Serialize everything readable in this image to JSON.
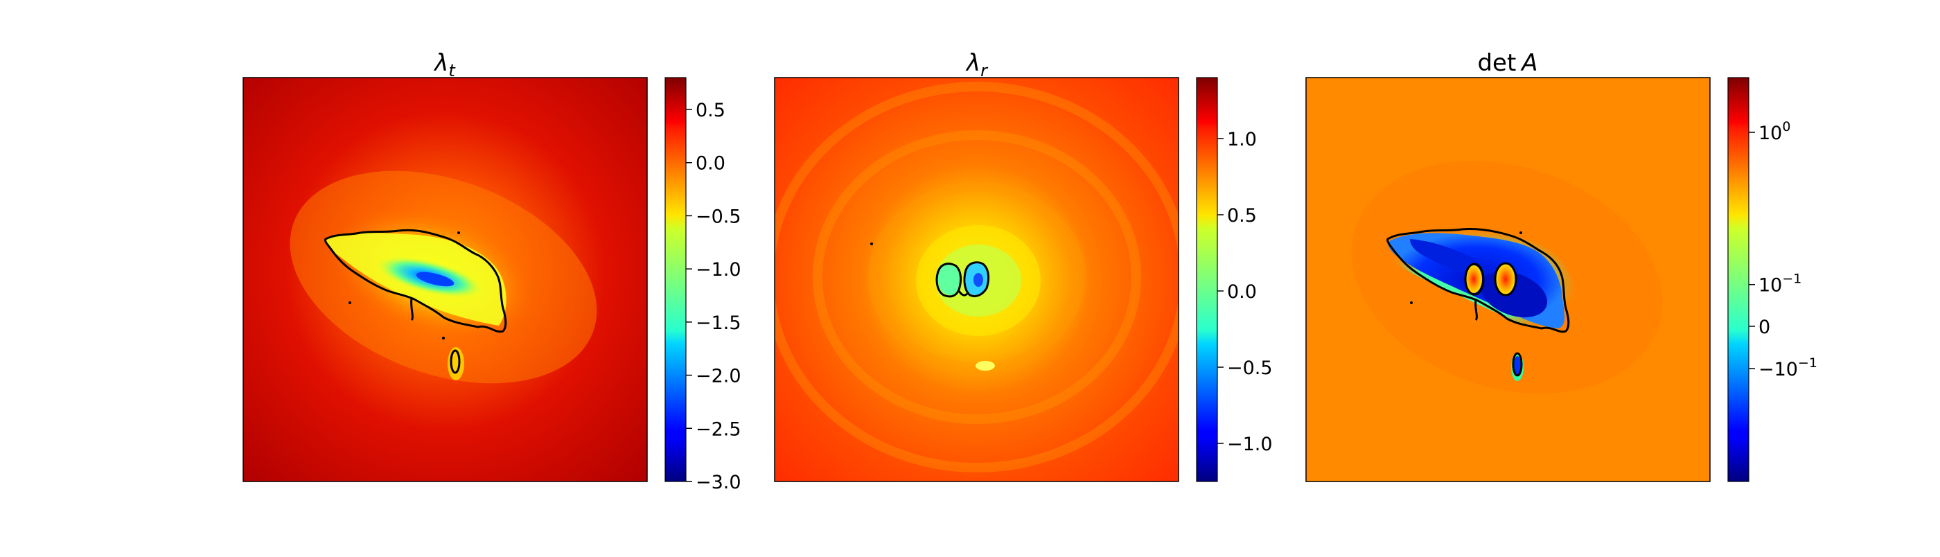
{
  "chart_data": [
    {
      "type": "heatmap",
      "title": "λ_t",
      "title_base": "λ",
      "title_sub": "t",
      "colormap": "jet",
      "clim": [
        -3.0,
        0.8
      ],
      "colorbar_ticks": [
        {
          "value": 0.5,
          "label": "0.5"
        },
        {
          "value": 0.0,
          "label": "0.0"
        },
        {
          "value": -0.5,
          "label": "−0.5"
        },
        {
          "value": -1.0,
          "label": "−1.0"
        },
        {
          "value": -1.5,
          "label": "−1.5"
        },
        {
          "value": -2.0,
          "label": "−2.0"
        },
        {
          "value": -2.5,
          "label": "−2.5"
        },
        {
          "value": -3.0,
          "label": "−3.0"
        }
      ]
    },
    {
      "type": "heatmap",
      "title": "λ_r",
      "title_base": "λ",
      "title_sub": "r",
      "colormap": "jet",
      "clim": [
        -1.25,
        1.4
      ],
      "colorbar_ticks": [
        {
          "value": 1.0,
          "label": "1.0"
        },
        {
          "value": 0.5,
          "label": "0.5"
        },
        {
          "value": 0.0,
          "label": "0.0"
        },
        {
          "value": -0.5,
          "label": "−0.5"
        },
        {
          "value": -1.0,
          "label": "−1.0"
        }
      ]
    },
    {
      "type": "heatmap",
      "title": "det A",
      "title_base": "det",
      "title_sub": "A",
      "colormap": "jet",
      "scale": "symlog",
      "colorbar_ticks": [
        {
          "label": "10^0",
          "base": "10",
          "exp": "0"
        },
        {
          "label": "10^−1",
          "base": "10",
          "exp": "−1"
        },
        {
          "label": "0",
          "base": "0",
          "exp": ""
        },
        {
          "label": "−10^−1",
          "base": "−10",
          "exp": "−1"
        }
      ]
    }
  ]
}
